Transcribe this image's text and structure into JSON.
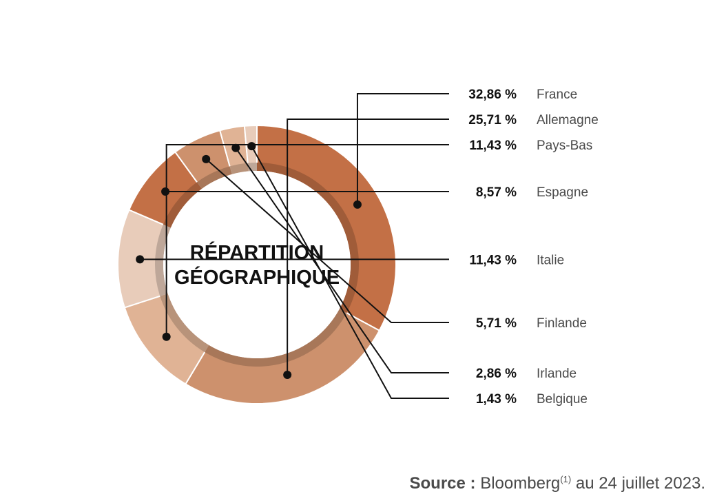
{
  "chart_data": {
    "type": "pie",
    "title_lines": [
      "RÉPARTITION",
      "GÉOGRAPHIQUE"
    ],
    "slices": [
      {
        "label": "France",
        "value": 32.86,
        "value_label": "32,86 %",
        "color": "#c37046"
      },
      {
        "label": "Allemagne",
        "value": 25.71,
        "value_label": "25,71 %",
        "color": "#cd916d"
      },
      {
        "label": "Pays-Bas",
        "value": 11.43,
        "value_label": "11,43 %",
        "color": "#e0b395"
      },
      {
        "label": "Italie",
        "value": 11.43,
        "value_label": "11,43 %",
        "color": "#e8ccba"
      },
      {
        "label": "Espagne",
        "value": 8.57,
        "value_label": "8,57 %",
        "color": "#c37046"
      },
      {
        "label": "Finlande",
        "value": 5.71,
        "value_label": "5,71 %",
        "color": "#cd916d"
      },
      {
        "label": "Irlande",
        "value": 2.86,
        "value_label": "2,86 %",
        "color": "#e0b395"
      },
      {
        "label": "Belgique",
        "value": 1.43,
        "value_label": "1,43 %",
        "color": "#e8ccba"
      }
    ],
    "legend_placement": "right"
  },
  "source": {
    "label": "Source :",
    "text": "Bloomberg",
    "superscript": "(1)",
    "suffix": "au 24 juillet 2023."
  }
}
